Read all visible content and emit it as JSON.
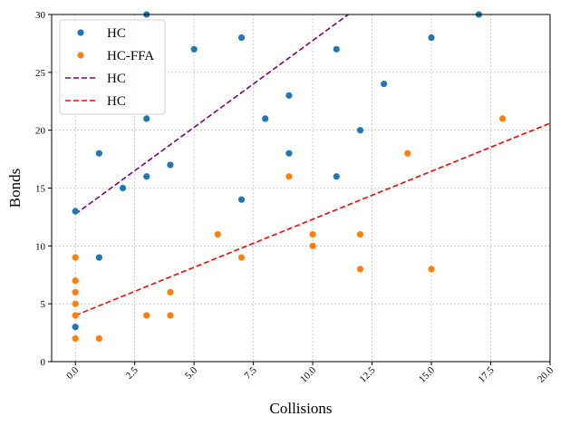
{
  "chart_data": {
    "type": "scatter",
    "xlabel": "Collisions",
    "ylabel": "Bonds",
    "xlim": [
      -1,
      20
    ],
    "ylim": [
      0,
      30
    ],
    "xticks": [
      "0.0",
      "2.5",
      "5.0",
      "7.5",
      "10.0",
      "12.5",
      "15.0",
      "17.5",
      "20.0"
    ],
    "yticks": [
      "0",
      "5",
      "10",
      "15",
      "20",
      "25",
      "30"
    ],
    "grid": true,
    "legend_position": "top-left",
    "series": [
      {
        "name": "HC",
        "kind": "scatter",
        "color": "#1f77b4",
        "points": [
          [
            0,
            13
          ],
          [
            0,
            3
          ],
          [
            1,
            18
          ],
          [
            1,
            9
          ],
          [
            2,
            15
          ],
          [
            3,
            30
          ],
          [
            3,
            21
          ],
          [
            3,
            16
          ],
          [
            4,
            17
          ],
          [
            5,
            27
          ],
          [
            7,
            28
          ],
          [
            7,
            14
          ],
          [
            8,
            21
          ],
          [
            9,
            23
          ],
          [
            9,
            18
          ],
          [
            11,
            27
          ],
          [
            11,
            16
          ],
          [
            12,
            20
          ],
          [
            13,
            24
          ],
          [
            15,
            28
          ],
          [
            17,
            30
          ]
        ]
      },
      {
        "name": "HC-FFA",
        "kind": "scatter",
        "color": "#ff7f0e",
        "points": [
          [
            0,
            9
          ],
          [
            0,
            7
          ],
          [
            0,
            6
          ],
          [
            0,
            5
          ],
          [
            0,
            4
          ],
          [
            0,
            2
          ],
          [
            1,
            2
          ],
          [
            3,
            4
          ],
          [
            4,
            6
          ],
          [
            4,
            4
          ],
          [
            6,
            11
          ],
          [
            7,
            9
          ],
          [
            9,
            16
          ],
          [
            10,
            11
          ],
          [
            10,
            10
          ],
          [
            12,
            11
          ],
          [
            12,
            8
          ],
          [
            14,
            18
          ],
          [
            15,
            8
          ],
          [
            18,
            21
          ]
        ]
      },
      {
        "name": "HC",
        "kind": "line",
        "color": "#800080",
        "dash": "dashed",
        "slope": 1.5,
        "intercept": 12.75
      },
      {
        "name": "HC",
        "kind": "line",
        "color": "#ff0000",
        "dash": "dashed",
        "slope": 0.83,
        "intercept": 4.0
      }
    ]
  }
}
